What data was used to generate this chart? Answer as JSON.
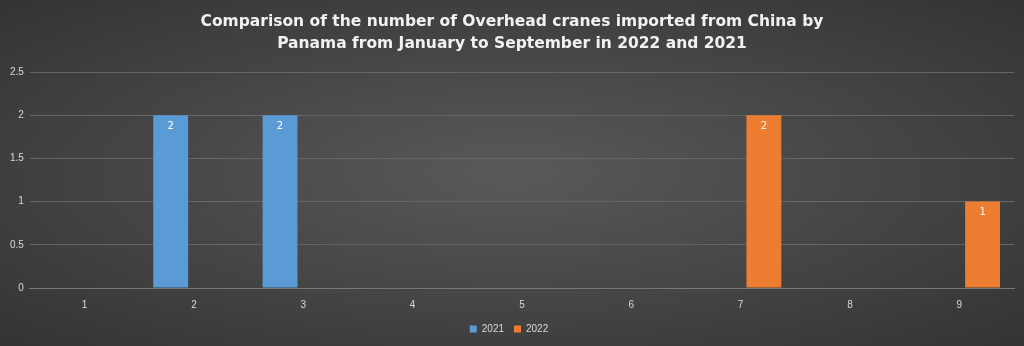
{
  "chart_data": {
    "type": "bar",
    "title": "Comparison of the number of Overhead cranes imported from China by Panama from January to September in 2022 and 2021",
    "categories": [
      "1",
      "2",
      "3",
      "4",
      "5",
      "6",
      "7",
      "8",
      "9"
    ],
    "series": [
      {
        "name": "2021",
        "color": "#5b9bd5",
        "values": [
          0,
          2,
          2,
          0,
          0,
          0,
          0,
          0,
          0
        ],
        "value_labels": [
          null,
          "2",
          "2",
          null,
          null,
          null,
          null,
          null,
          null
        ]
      },
      {
        "name": "2022",
        "color": "#ed7d31",
        "values": [
          0,
          0,
          0,
          0,
          0,
          0,
          2,
          0,
          1
        ],
        "value_labels": [
          null,
          null,
          null,
          null,
          null,
          null,
          "2",
          null,
          "1"
        ]
      }
    ],
    "ylim": [
      0,
      2.5
    ],
    "yticks": [
      0,
      0.5,
      1,
      1.5,
      2,
      2.5
    ],
    "grid": "y",
    "legend": "bottom"
  }
}
